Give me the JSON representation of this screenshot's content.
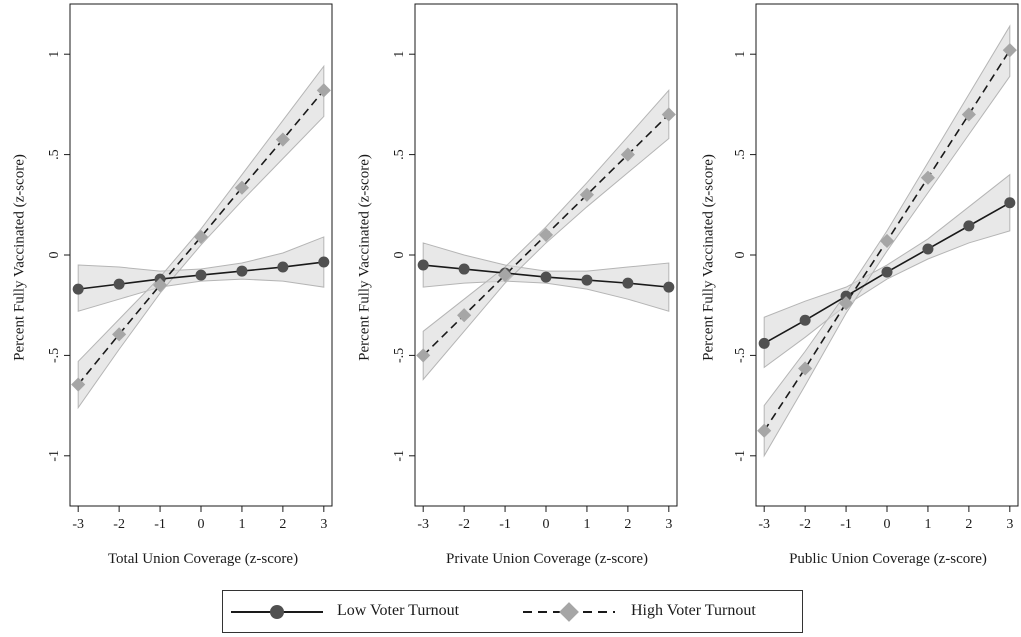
{
  "chart_data": [
    {
      "type": "line",
      "xlabel": "Total Union Coverage (z-score)",
      "ylabel": "Percent Fully Vaccinated (z-score)",
      "x": [
        -3,
        -2,
        -1,
        0,
        1,
        2,
        3
      ],
      "xlim": [
        -3.2,
        3.2
      ],
      "ylim": [
        -1.25,
        1.25
      ],
      "yticks": [
        -1,
        -0.5,
        0,
        0.5,
        1
      ],
      "ytick_labels": [
        "-1",
        "-.5",
        "0",
        ".5",
        "1"
      ],
      "xtick_labels": [
        "-3",
        "-2",
        "-1",
        "0",
        "1",
        "2",
        "3"
      ],
      "series": [
        {
          "name": "Low Voter Turnout",
          "values": [
            -0.17,
            -0.145,
            -0.12,
            -0.1,
            -0.08,
            -0.06,
            -0.035
          ],
          "ci_lower": [
            -0.28,
            -0.22,
            -0.16,
            -0.13,
            -0.12,
            -0.13,
            -0.16
          ],
          "ci_upper": [
            -0.05,
            -0.06,
            -0.08,
            -0.07,
            -0.04,
            0.01,
            0.09
          ]
        },
        {
          "name": "High Voter Turnout",
          "values": [
            -0.645,
            -0.395,
            -0.15,
            0.09,
            0.335,
            0.575,
            0.82
          ],
          "ci_lower": [
            -0.76,
            -0.47,
            -0.19,
            0.05,
            0.27,
            0.48,
            0.69
          ],
          "ci_upper": [
            -0.53,
            -0.32,
            -0.11,
            0.13,
            0.4,
            0.67,
            0.94
          ]
        }
      ]
    },
    {
      "type": "line",
      "xlabel": "Private Union Coverage (z-score)",
      "ylabel": "Percent Fully Vaccinated (z-score)",
      "x": [
        -3,
        -2,
        -1,
        0,
        1,
        2,
        3
      ],
      "xlim": [
        -3.2,
        3.2
      ],
      "ylim": [
        -1.25,
        1.25
      ],
      "yticks": [
        -1,
        -0.5,
        0,
        0.5,
        1
      ],
      "ytick_labels": [
        "-1",
        "-.5",
        "0",
        ".5",
        "1"
      ],
      "xtick_labels": [
        "-3",
        "-2",
        "-1",
        "0",
        "1",
        "2",
        "3"
      ],
      "series": [
        {
          "name": "Low Voter Turnout",
          "values": [
            -0.05,
            -0.07,
            -0.09,
            -0.11,
            -0.125,
            -0.14,
            -0.16
          ],
          "ci_lower": [
            -0.16,
            -0.14,
            -0.13,
            -0.14,
            -0.17,
            -0.22,
            -0.28
          ],
          "ci_upper": [
            0.06,
            0.0,
            -0.05,
            -0.08,
            -0.08,
            -0.06,
            -0.04
          ]
        },
        {
          "name": "High Voter Turnout",
          "values": [
            -0.5,
            -0.3,
            -0.1,
            0.1,
            0.3,
            0.5,
            0.7
          ],
          "ci_lower": [
            -0.62,
            -0.38,
            -0.14,
            0.06,
            0.24,
            0.41,
            0.58
          ],
          "ci_upper": [
            -0.38,
            -0.22,
            -0.06,
            0.14,
            0.36,
            0.59,
            0.82
          ]
        }
      ]
    },
    {
      "type": "line",
      "xlabel": "Public Union Coverage (z-score)",
      "ylabel": "Percent Fully Vaccinated (z-score)",
      "x": [
        -3,
        -2,
        -1,
        0,
        1,
        2,
        3
      ],
      "xlim": [
        -3.2,
        3.2
      ],
      "ylim": [
        -1.25,
        1.25
      ],
      "yticks": [
        -1,
        -0.5,
        0,
        0.5,
        1
      ],
      "ytick_labels": [
        "-1",
        "-.5",
        "0",
        ".5",
        "1"
      ],
      "xtick_labels": [
        "-3",
        "-2",
        "-1",
        "0",
        "1",
        "2",
        "3"
      ],
      "series": [
        {
          "name": "Low Voter Turnout",
          "values": [
            -0.44,
            -0.325,
            -0.205,
            -0.085,
            0.03,
            0.145,
            0.26
          ],
          "ci_lower": [
            -0.56,
            -0.41,
            -0.25,
            -0.12,
            -0.02,
            0.06,
            0.12
          ],
          "ci_upper": [
            -0.31,
            -0.23,
            -0.16,
            -0.05,
            0.08,
            0.24,
            0.4
          ]
        },
        {
          "name": "High Voter Turnout",
          "values": [
            -0.875,
            -0.565,
            -0.24,
            0.07,
            0.385,
            0.7,
            1.02
          ],
          "ci_lower": [
            -1.0,
            -0.65,
            -0.29,
            0.02,
            0.31,
            0.6,
            0.89
          ],
          "ci_upper": [
            -0.75,
            -0.48,
            -0.19,
            0.12,
            0.46,
            0.8,
            1.14
          ]
        }
      ]
    }
  ],
  "legend": {
    "low_label": "Low Voter Turnout",
    "high_label": "High Voter Turnout"
  },
  "style": {
    "low_color": "#505050",
    "high_color": "#a6a6a6",
    "ci_fill": "#d9d9d9",
    "ci_stroke": "#b5b5b5"
  }
}
